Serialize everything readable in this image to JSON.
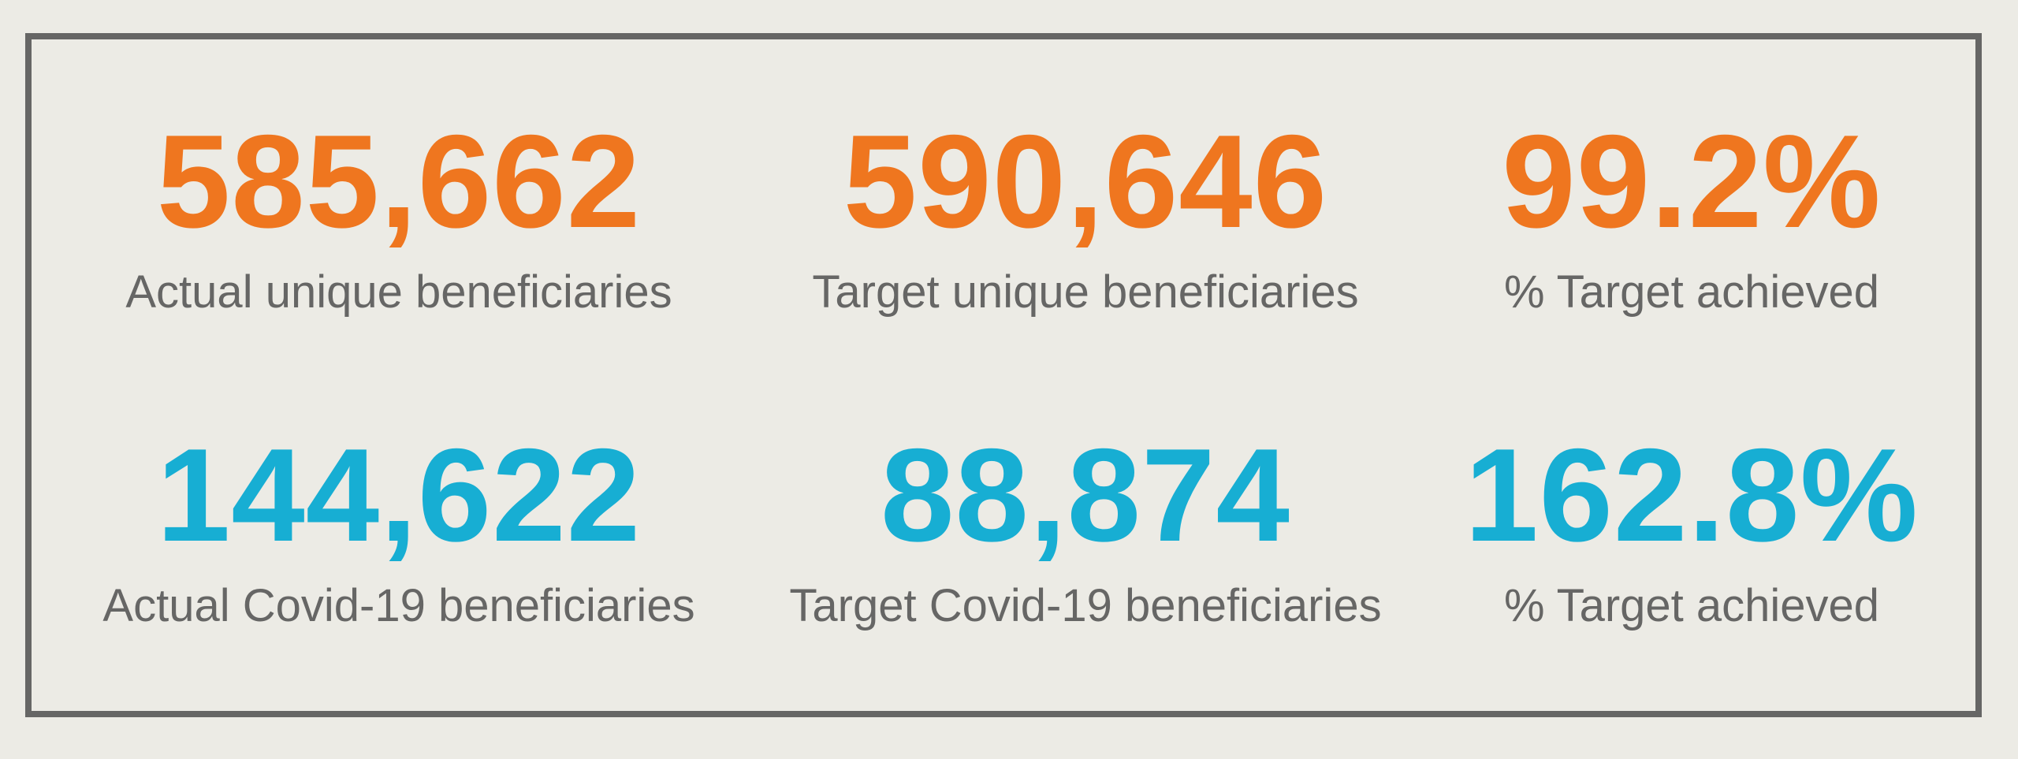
{
  "stats": [
    {
      "value": "585,662",
      "label": "Actual unique beneficiaries"
    },
    {
      "value": "590,646",
      "label": "Target unique beneficiaries"
    },
    {
      "value": "99.2%",
      "label": "% Target achieved"
    },
    {
      "value": "144,622",
      "label": "Actual Covid-19 beneficiaries"
    },
    {
      "value": "88,874",
      "label": "Target Covid-19 beneficiaries"
    },
    {
      "value": "162.8%",
      "label": "% Target achieved"
    }
  ],
  "colors": {
    "background": "#ecebe5",
    "frame": "#666665",
    "label": "#666665",
    "row_1_value": "#ef761f",
    "row_2_value": "#17aed3"
  }
}
